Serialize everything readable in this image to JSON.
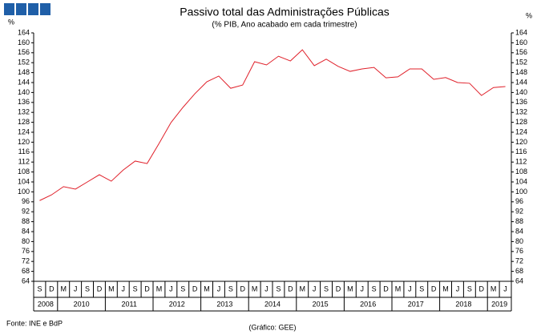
{
  "chart_data": {
    "type": "line",
    "title": "Passivo total das Administrações Públicas",
    "subtitle": "(% PIB, Ano acabado em cada trimestre)",
    "y_unit_left": "%",
    "y_unit_right": "%",
    "source": "Fonte: INE e BdP",
    "credit": "(Gráfico: GEE)",
    "categories": [
      "S",
      "D",
      "M",
      "J",
      "S",
      "D",
      "M",
      "J",
      "S",
      "D",
      "M",
      "J",
      "S",
      "D",
      "M",
      "J",
      "S",
      "D",
      "M",
      "J",
      "S",
      "D",
      "M",
      "J",
      "S",
      "D",
      "M",
      "J",
      "S",
      "D",
      "M",
      "J",
      "S",
      "D",
      "M",
      "J",
      "S",
      "D",
      "M",
      "J"
    ],
    "years": [
      "2008",
      "2010",
      "2011",
      "2012",
      "2013",
      "2014",
      "2015",
      "2016",
      "2017",
      "2018",
      "2019"
    ],
    "series": [
      {
        "name": "Passivo total",
        "color": "#e0202a",
        "values": [
          96.5,
          98.8,
          102.1,
          101.1,
          104.0,
          106.9,
          104.3,
          108.8,
          112.4,
          111.4,
          119.5,
          127.9,
          134.0,
          139.5,
          144.3,
          146.6,
          141.7,
          143.0,
          152.4,
          151.1,
          154.6,
          152.7,
          157.2,
          150.8,
          153.4,
          150.5,
          148.5,
          149.5,
          150.1,
          145.9,
          146.3,
          149.5,
          149.5,
          145.3,
          146.0,
          144.0,
          143.7,
          138.8,
          142.0,
          142.4
        ]
      }
    ],
    "ylim": [
      64,
      164
    ],
    "yticks": [
      64,
      68,
      72,
      76,
      80,
      84,
      88,
      92,
      96,
      100,
      104,
      108,
      112,
      116,
      120,
      124,
      128,
      132,
      136,
      140,
      144,
      148,
      152,
      156,
      160,
      164
    ],
    "y2lim": [
      64,
      164
    ],
    "y2ticks": [
      64,
      68,
      72,
      76,
      80,
      84,
      88,
      92,
      96,
      100,
      104,
      108,
      112,
      116,
      120,
      124,
      128,
      132,
      136,
      140,
      144,
      148,
      152,
      156,
      160,
      164
    ],
    "grid": false
  }
}
